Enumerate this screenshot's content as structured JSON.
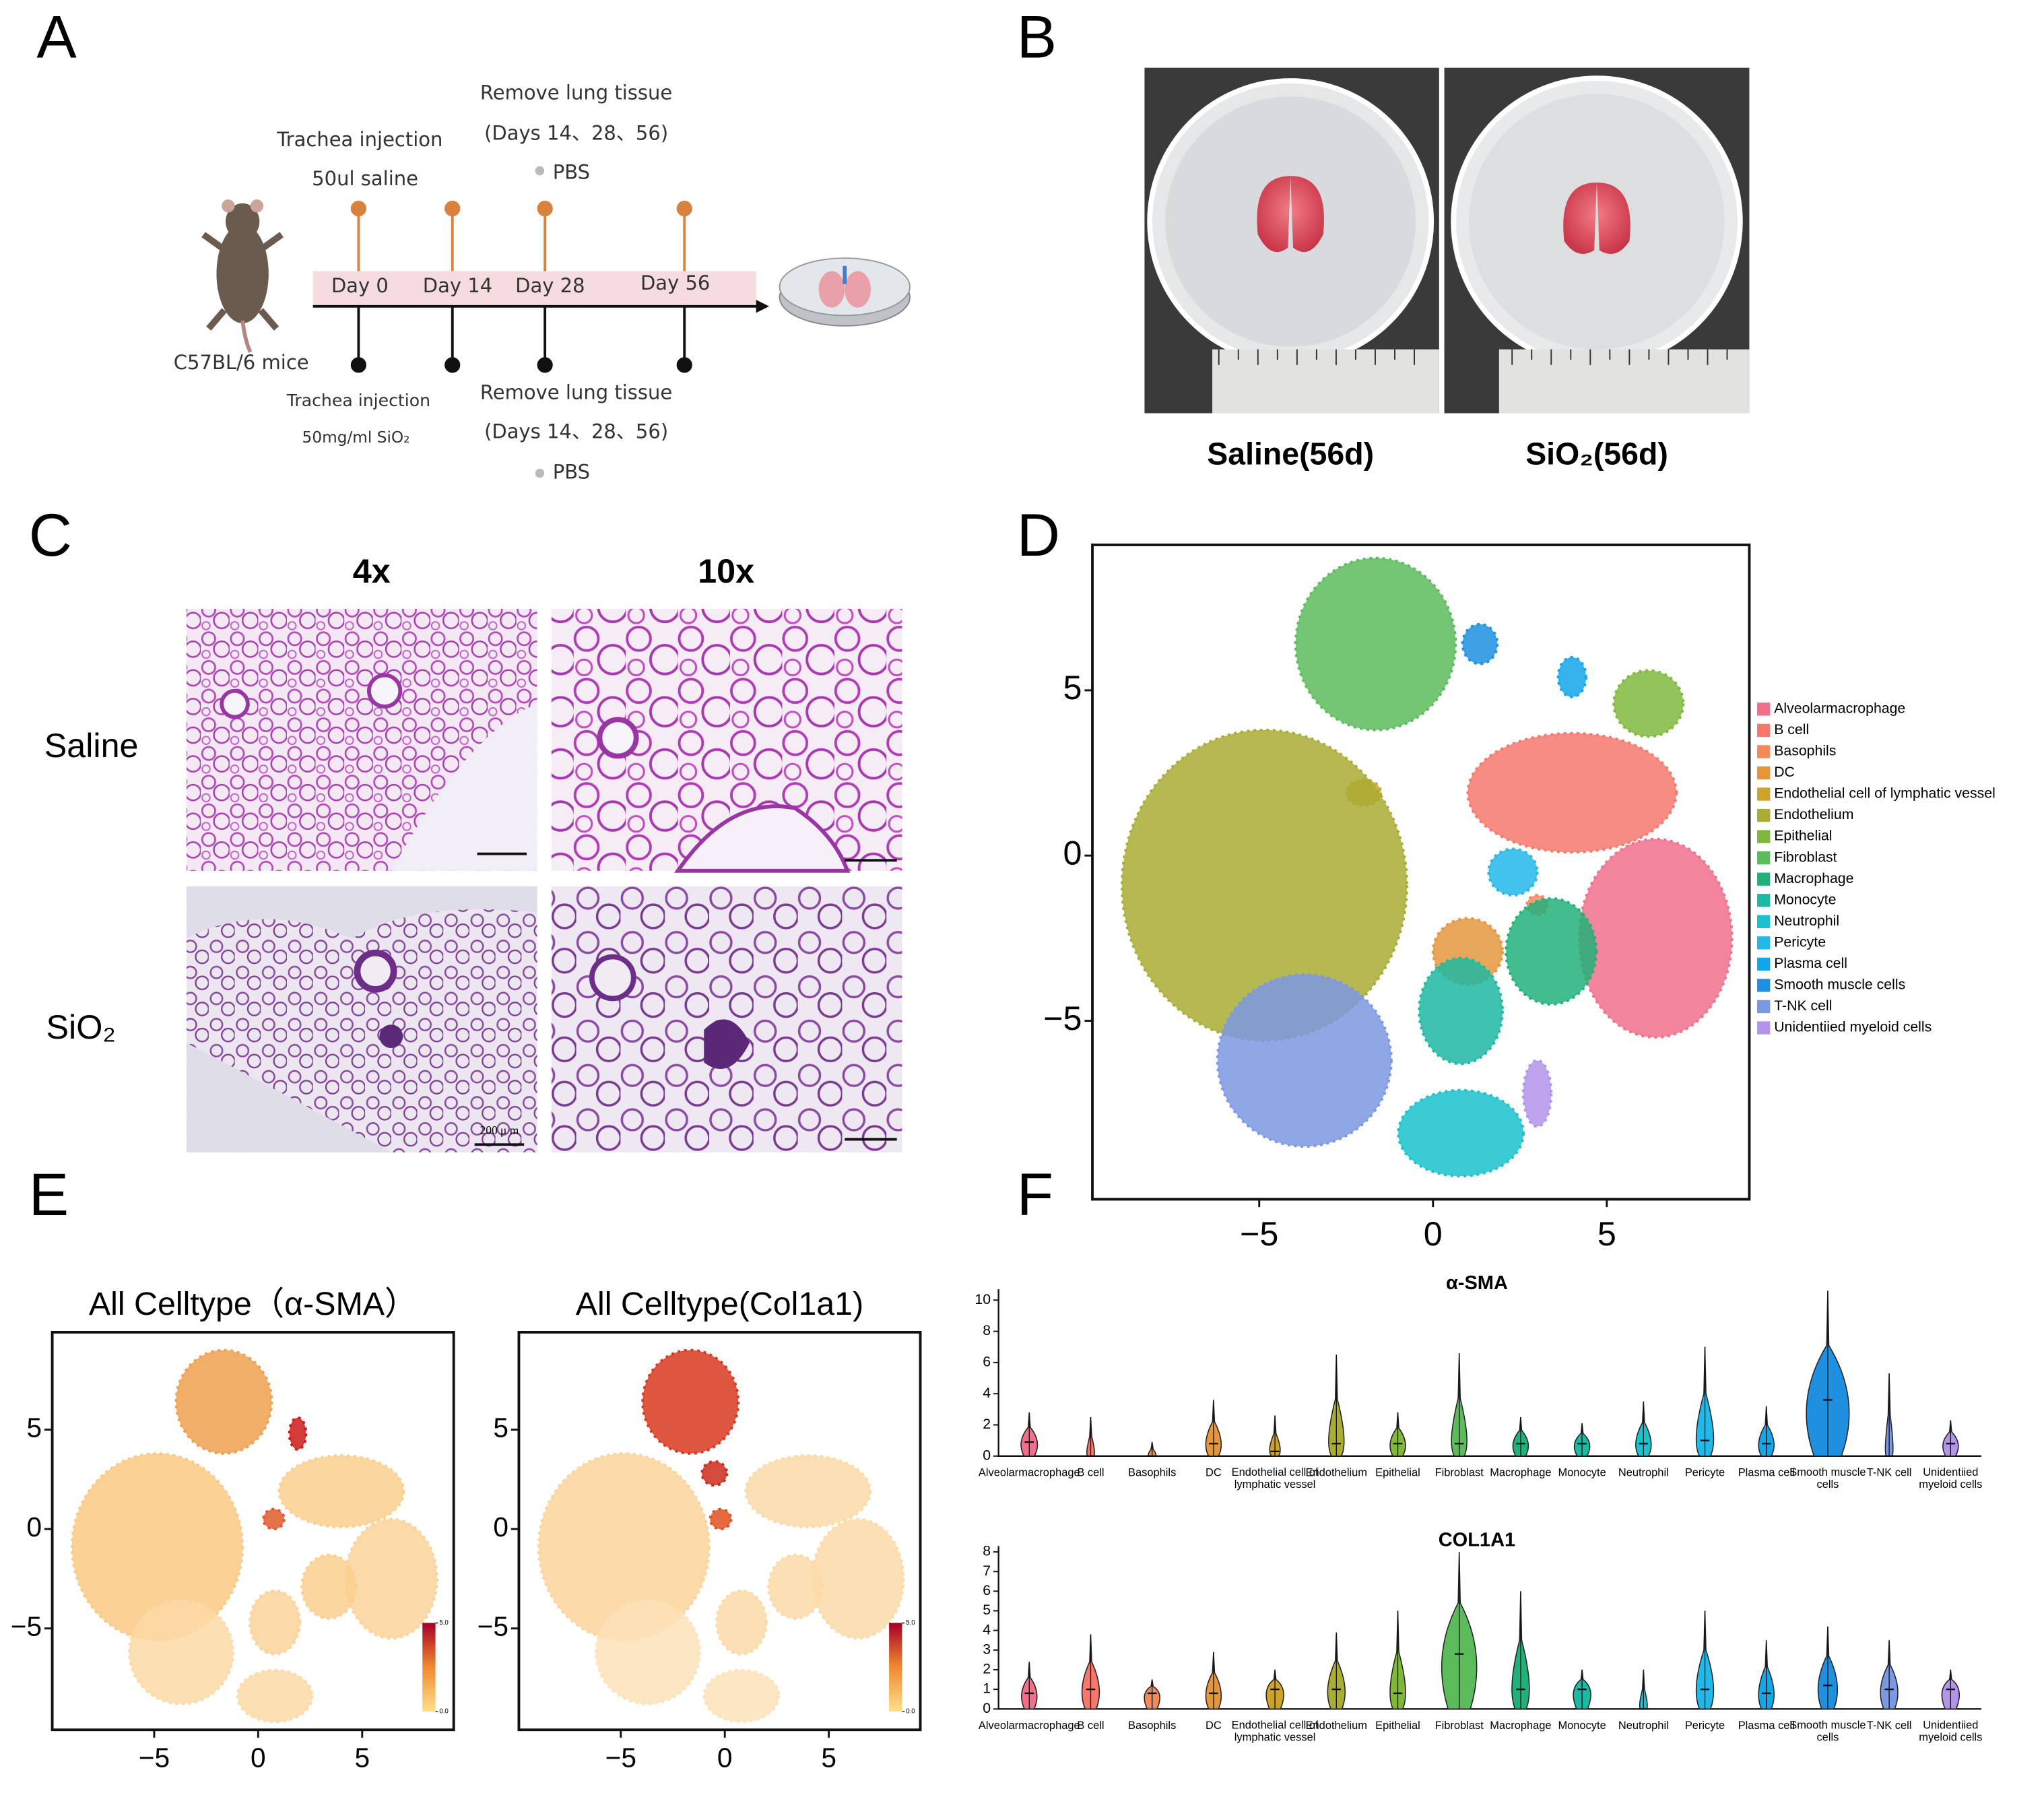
{
  "panel_labels": [
    "A",
    "B",
    "C",
    "D",
    "E",
    "F"
  ],
  "panel_a": {
    "top": [
      "Trachea injection",
      "50ul saline",
      "Remove lung tissue",
      "(Days 14、28、56)",
      "PBS"
    ],
    "bottom": [
      "Trachea injection",
      "50mg/ml SiO₂",
      "Remove lung tissue",
      "(Days 14、28、56)",
      "PBS"
    ],
    "timeline": [
      "Day 0",
      "Day 14",
      "Day 28",
      "Day 56"
    ],
    "mouse_label": "C57BL/6 mice"
  },
  "panel_b": {
    "captions": [
      "Saline(56d)",
      "SiO₂(56d)"
    ]
  },
  "panel_c": {
    "columns": [
      "4x",
      "10x"
    ],
    "rows": [
      "Saline",
      "SiO₂"
    ],
    "scale_bar": "200 μ m"
  },
  "chart_data": [
    {
      "type": "scatter",
      "xlim": [
        -9.8,
        9.1
      ],
      "ylim": [
        -10.4,
        9.4
      ],
      "xticks": [
        {
          "value": -5,
          "label": "−5"
        },
        0,
        5
      ],
      "yticks": [
        {
          "value": -5,
          "label": "−5"
        },
        0,
        5
      ],
      "series": [
        {
          "name": "Alveolarmacrophage",
          "color": "#f0708c",
          "x": [
            6.4
          ],
          "y": [
            -2.5
          ],
          "spread_x": [
            2.2
          ],
          "spread_y": [
            3.0
          ]
        },
        {
          "name": "B cell",
          "color": "#f4786c",
          "x": [
            4.0
          ],
          "y": [
            1.9
          ],
          "spread_x": [
            3.0
          ],
          "spread_y": [
            1.8
          ]
        },
        {
          "name": "Basophils",
          "color": "#f28a5a",
          "x": [
            3.0
          ],
          "y": [
            -1.5
          ],
          "spread_x": [
            0.3
          ],
          "spread_y": [
            0.3
          ]
        },
        {
          "name": "DC",
          "color": "#e3963c",
          "x": [
            1.0
          ],
          "y": [
            -2.9
          ],
          "spread_x": [
            1.0
          ],
          "spread_y": [
            1.0
          ]
        },
        {
          "name": "Endothelial cell of lymphatic vessel",
          "color": "#cfa22e",
          "x": [
            -2.0
          ],
          "y": [
            1.9
          ],
          "spread_x": [
            0.5
          ],
          "spread_y": [
            0.4
          ]
        },
        {
          "name": "Endothelium",
          "color": "#a9ad34",
          "x": [
            -4.85
          ],
          "y": [
            -0.9
          ],
          "spread_x": [
            4.1
          ],
          "spread_y": [
            4.7
          ]
        },
        {
          "name": "Epithelial",
          "color": "#80b83e",
          "x": [
            6.2
          ],
          "y": [
            4.6
          ],
          "spread_x": [
            1.0
          ],
          "spread_y": [
            1.0
          ]
        },
        {
          "name": "Fibroblast",
          "color": "#5cbc5c",
          "x": [
            -1.65
          ],
          "y": [
            6.4
          ],
          "spread_x": [
            2.3
          ],
          "spread_y": [
            2.6
          ]
        },
        {
          "name": "Macrophage",
          "color": "#22b07a",
          "x": [
            3.4
          ],
          "y": [
            -2.9
          ],
          "spread_x": [
            1.3
          ],
          "spread_y": [
            1.6
          ]
        },
        {
          "name": "Monocyte",
          "color": "#1db9a2",
          "x": [
            0.8
          ],
          "y": [
            -4.7
          ],
          "spread_x": [
            1.2
          ],
          "spread_y": [
            1.6
          ]
        },
        {
          "name": "Neutrophil",
          "color": "#19c2cc",
          "x": [
            0.8
          ],
          "y": [
            -8.4
          ],
          "spread_x": [
            1.8
          ],
          "spread_y": [
            1.3
          ]
        },
        {
          "name": "Pericyte",
          "color": "#22b8e8",
          "x": [
            2.3
          ],
          "y": [
            -0.5
          ],
          "spread_x": [
            0.7
          ],
          "spread_y": [
            0.7
          ]
        },
        {
          "name": "Plasma cell",
          "color": "#12a6ea",
          "x": [
            4.0
          ],
          "y": [
            5.4
          ],
          "spread_x": [
            0.4
          ],
          "spread_y": [
            0.6
          ]
        },
        {
          "name": "Smooth muscle cells",
          "color": "#1f8fe0",
          "x": [
            1.35
          ],
          "y": [
            6.4
          ],
          "spread_x": [
            0.5
          ],
          "spread_y": [
            0.6
          ]
        },
        {
          "name": "T-NK cell",
          "color": "#7c98e2",
          "x": [
            -3.7
          ],
          "y": [
            -6.2
          ],
          "spread_x": [
            2.5
          ],
          "spread_y": [
            2.6
          ]
        },
        {
          "name": "Unidentiied myeloid cells",
          "color": "#b294ea",
          "x": [
            3.0
          ],
          "y": [
            -7.2
          ],
          "spread_x": [
            0.4
          ],
          "spread_y": [
            1.0
          ]
        }
      ]
    },
    {
      "type": "scatter",
      "title": "All Celltype（α-SMA）",
      "xlim": [
        -9.9,
        9.4
      ],
      "ylim": [
        -10.1,
        9.9
      ],
      "xticks": [
        {
          "value": -5,
          "label": "−5"
        },
        0,
        5
      ],
      "yticks": [
        {
          "value": -5,
          "label": "−5"
        },
        0,
        5
      ],
      "x": [
        -4.85,
        -1.65,
        4.0,
        6.4,
        -3.7,
        0.8,
        0.8,
        3.4,
        1.9,
        0.75
      ],
      "y": [
        -0.9,
        6.4,
        1.9,
        -2.5,
        -6.2,
        -8.4,
        -4.7,
        -2.9,
        4.8,
        0.5
      ],
      "spread_x": [
        4.1,
        2.3,
        3.0,
        2.2,
        2.5,
        1.8,
        1.2,
        1.3,
        0.4,
        0.5
      ],
      "spread_y": [
        4.7,
        2.6,
        1.8,
        3.0,
        2.6,
        1.3,
        1.6,
        1.6,
        0.8,
        0.5
      ],
      "colors": [
        "#fbc983",
        "#eda04e",
        "#fbcf8e",
        "#fbd29a",
        "#fcd9a6",
        "#fcd9a6",
        "#fbd29a",
        "#fbcf8e",
        "#cc1a1a",
        "#e05a2a"
      ],
      "colorbar": {
        "lim": [
          0,
          5
        ],
        "ticks": [
          {
            "value": 0,
            "label": "0.0"
          },
          {
            "value": 5,
            "label": "5.0"
          }
        ],
        "colors": [
          "#fee08b",
          "#f08a30",
          "#a50026"
        ]
      }
    },
    {
      "type": "scatter",
      "title": "All Celltype(Col1a1)",
      "xlim": [
        -9.9,
        9.4
      ],
      "ylim": [
        -10.1,
        9.9
      ],
      "xticks": [
        {
          "value": -5,
          "label": "−5"
        },
        0,
        5
      ],
      "yticks": [
        {
          "value": -5,
          "label": "−5"
        },
        0,
        5
      ],
      "x": [
        -4.85,
        -1.65,
        4.0,
        6.4,
        -3.7,
        0.8,
        0.8,
        3.4,
        -0.5,
        -0.2
      ],
      "y": [
        -0.9,
        6.4,
        1.9,
        -2.5,
        -6.2,
        -8.4,
        -4.7,
        -2.9,
        2.8,
        0.5
      ],
      "spread_x": [
        4.1,
        2.3,
        3.0,
        2.2,
        2.5,
        1.8,
        1.2,
        1.3,
        0.6,
        0.5
      ],
      "spread_y": [
        4.7,
        2.6,
        1.8,
        3.0,
        2.6,
        1.3,
        1.6,
        1.6,
        0.6,
        0.5
      ],
      "colors": [
        "#fcd49a",
        "#d9381e",
        "#fcdaa8",
        "#fcdaa8",
        "#fde2b8",
        "#fde2b8",
        "#fcdaa8",
        "#fcdaa8",
        "#cc2a1a",
        "#e2501f"
      ],
      "colorbar": {
        "lim": [
          0,
          5
        ],
        "ticks": [
          {
            "value": 0,
            "label": "0.0"
          },
          {
            "value": 5,
            "label": "5.0"
          }
        ],
        "colors": [
          "#fee08b",
          "#f08a30",
          "#a50026"
        ]
      }
    },
    {
      "type": "violin",
      "title": "α-SMA",
      "ylim": [
        0,
        10.7
      ],
      "yticks": [
        0,
        2,
        4,
        6,
        8,
        10
      ],
      "categories": [
        "Alveolarmacrophage",
        "B cell",
        "Basophils",
        "DC",
        "Endothelial cell of\nlymphatic vessel",
        "Endothelium",
        "Epithelial",
        "Fibroblast",
        "Macrophage",
        "Monocyte",
        "Neutrophil",
        "Pericyte",
        "Plasma cell",
        "Smooth muscle\ncells",
        "T-NK cell",
        "Unidentiied\nmyeloid cells"
      ],
      "colors": [
        "#f0708c",
        "#f4786c",
        "#f28a5a",
        "#e3963c",
        "#cfa22e",
        "#a9ad34",
        "#80b83e",
        "#5cbc5c",
        "#22b07a",
        "#1db9a2",
        "#19c2cc",
        "#22b8e8",
        "#12a6ea",
        "#1f8fe0",
        "#7c98e2",
        "#b294ea"
      ],
      "values": [
        2.8,
        2.5,
        0.9,
        3.6,
        2.6,
        6.5,
        2.8,
        6.6,
        2.5,
        2.1,
        3.5,
        7.0,
        3.2,
        10.6,
        5.3,
        2.3
      ],
      "medians": [
        0.9,
        0,
        0,
        0.8,
        0.3,
        0.8,
        0.8,
        0.8,
        0.8,
        0.8,
        0.8,
        1.0,
        0.8,
        3.6,
        0,
        0.8
      ]
    },
    {
      "type": "violin",
      "title": "COL1A1",
      "ylim": [
        0,
        8.3
      ],
      "yticks": [
        0,
        1,
        2,
        3,
        4,
        5,
        6,
        7,
        8
      ],
      "categories": [
        "Alveolarmacrophage",
        "B cell",
        "Basophils",
        "DC",
        "Endothelial cell of\nlymphatic vessel",
        "Endothelium",
        "Epithelial",
        "Fibroblast",
        "Macrophage",
        "Monocyte",
        "Neutrophil",
        "Pericyte",
        "Plasma cell",
        "Smooth muscle\ncells",
        "T-NK cell",
        "Unidentiied\nmyeloid cells"
      ],
      "colors": [
        "#f0708c",
        "#f4786c",
        "#f28a5a",
        "#e3963c",
        "#cfa22e",
        "#a9ad34",
        "#80b83e",
        "#5cbc5c",
        "#22b07a",
        "#1db9a2",
        "#19c2cc",
        "#22b8e8",
        "#12a6ea",
        "#1f8fe0",
        "#7c98e2",
        "#b294ea"
      ],
      "values": [
        2.4,
        3.8,
        1.5,
        2.9,
        2.0,
        3.9,
        5.0,
        8.0,
        6.0,
        2.0,
        2.0,
        5.0,
        3.5,
        4.2,
        3.5,
        2.0
      ],
      "medians": [
        0.8,
        1.0,
        0.8,
        0.8,
        1.0,
        1.0,
        0.8,
        2.8,
        1.0,
        1.0,
        0,
        1.0,
        0.8,
        1.2,
        1.0,
        1.0
      ]
    }
  ]
}
